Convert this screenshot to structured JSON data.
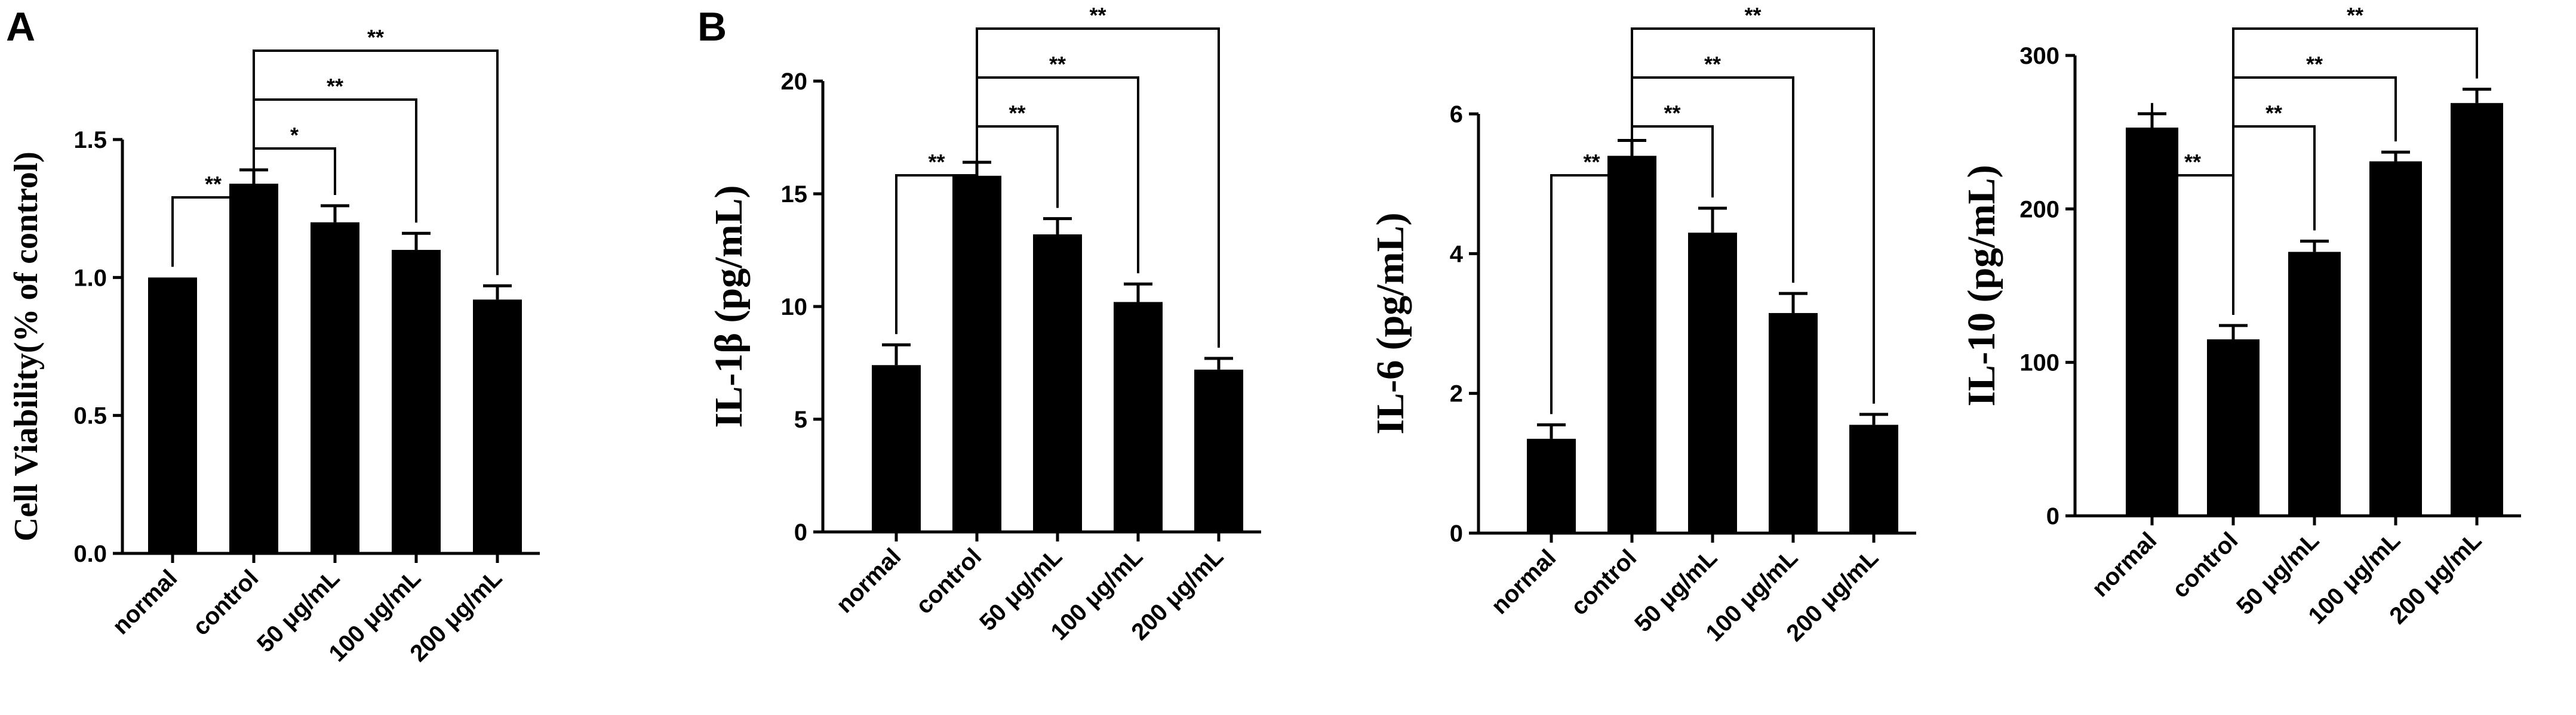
{
  "panel_labels": [
    "A",
    "B"
  ],
  "chart_data": [
    {
      "type": "bar",
      "panel": "A",
      "ylabel": "Cell Viability(% of control)",
      "categories": [
        "normal",
        "control",
        "50 μg/mL",
        "100 μg/mL",
        "200 μg/mL"
      ],
      "values": [
        1.0,
        1.34,
        1.2,
        1.1,
        0.92
      ],
      "errors": [
        0,
        0.05,
        0.06,
        0.06,
        0.05
      ],
      "ylim": [
        0,
        1.5
      ],
      "yticks": [
        "0.0",
        "0.5",
        "1.0",
        "1.5"
      ],
      "significance": [
        {
          "from": 0,
          "to": 1,
          "label": "**"
        },
        {
          "from": 1,
          "to": 2,
          "label": "*"
        },
        {
          "from": 1,
          "to": 3,
          "label": "**"
        },
        {
          "from": 1,
          "to": 4,
          "label": "**"
        }
      ]
    },
    {
      "type": "bar",
      "panel": "B",
      "ylabel": "IL-1β (pg/mL)",
      "categories": [
        "normal",
        "control",
        "50 μg/mL",
        "100 μg/mL",
        "200 μg/mL"
      ],
      "values": [
        7.4,
        15.8,
        13.2,
        10.2,
        7.2
      ],
      "errors": [
        0.9,
        0.6,
        0.7,
        0.8,
        0.5
      ],
      "ylim": [
        0,
        20
      ],
      "yticks": [
        "0",
        "5",
        "10",
        "15",
        "20"
      ],
      "significance": [
        {
          "from": 0,
          "to": 1,
          "label": "**"
        },
        {
          "from": 1,
          "to": 2,
          "label": "**"
        },
        {
          "from": 1,
          "to": 3,
          "label": "**"
        },
        {
          "from": 1,
          "to": 4,
          "label": "**"
        }
      ]
    },
    {
      "type": "bar",
      "ylabel": "IL-6 (pg/mL)",
      "categories": [
        "normal",
        "control",
        "50 μg/mL",
        "100 μg/mL",
        "200 μg/mL"
      ],
      "values": [
        1.35,
        5.4,
        4.3,
        3.15,
        1.55
      ],
      "errors": [
        0.2,
        0.22,
        0.35,
        0.28,
        0.15
      ],
      "ylim": [
        0,
        6
      ],
      "yticks": [
        "0",
        "2",
        "4",
        "6"
      ],
      "significance": [
        {
          "from": 0,
          "to": 1,
          "label": "**"
        },
        {
          "from": 1,
          "to": 2,
          "label": "**"
        },
        {
          "from": 1,
          "to": 3,
          "label": "**"
        },
        {
          "from": 1,
          "to": 4,
          "label": "**"
        }
      ]
    },
    {
      "type": "bar",
      "ylabel": "IL-10 (pg/mL)",
      "categories": [
        "normal",
        "control",
        "50 μg/mL",
        "100 μg/mL",
        "200 μg/mL"
      ],
      "values": [
        253,
        115,
        172,
        231,
        269
      ],
      "errors": [
        9,
        9,
        7,
        6,
        9
      ],
      "ylim": [
        0,
        300
      ],
      "yticks": [
        "0",
        "100",
        "200",
        "300"
      ],
      "significance": [
        {
          "from": 0,
          "to": 1,
          "label": "**"
        },
        {
          "from": 1,
          "to": 2,
          "label": "**"
        },
        {
          "from": 1,
          "to": 3,
          "label": "**"
        },
        {
          "from": 1,
          "to": 4,
          "label": "**"
        }
      ]
    }
  ]
}
